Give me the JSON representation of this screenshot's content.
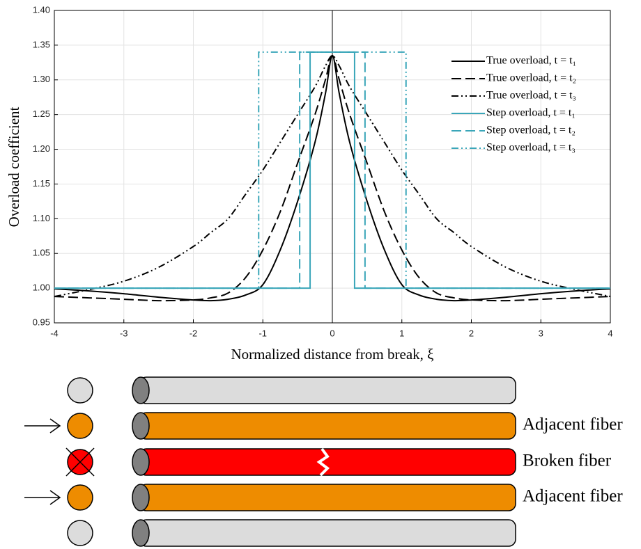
{
  "chart_data": {
    "type": "line",
    "xlabel": "Normalized distance from break,  ξ",
    "ylabel": "Overload coefficient",
    "xlim": [
      -4,
      4
    ],
    "ylim": [
      0.95,
      1.4
    ],
    "xticks": [
      -4,
      -3,
      -2,
      -1,
      0,
      1,
      2,
      3,
      4
    ],
    "yticks": [
      0.95,
      {
        "value": 1,
        "label": "1.00"
      },
      1.05,
      {
        "value": 1.1,
        "label": "1.10"
      },
      1.15,
      {
        "value": 1.2,
        "label": "1.20"
      },
      1.25,
      {
        "value": 1.3,
        "label": "1.30"
      },
      1.35,
      {
        "value": 1.4,
        "label": "1.40"
      }
    ],
    "grid": true,
    "legend": "upper right",
    "series": [
      {
        "name": "True overload, t = t₁",
        "color": "#000000",
        "dash": "solid",
        "x": [
          -4,
          -3.5,
          -3,
          -2.5,
          -2,
          -1.75,
          -1.5,
          -1.25,
          -1,
          -0.75,
          -0.5,
          -0.25,
          -0.1,
          0,
          0.1,
          0.25,
          0.5,
          0.75,
          1,
          1.25,
          1.5,
          1.75,
          2,
          2.5,
          3,
          3.5,
          4
        ],
        "values": [
          0.999,
          0.996,
          0.992,
          0.987,
          0.983,
          0.982,
          0.984,
          0.99,
          1.005,
          1.055,
          1.125,
          1.21,
          1.28,
          1.335,
          1.28,
          1.21,
          1.125,
          1.055,
          1.005,
          0.99,
          0.984,
          0.982,
          0.983,
          0.987,
          0.992,
          0.996,
          0.999
        ]
      },
      {
        "name": "True overload, t = t₂",
        "color": "#000000",
        "dash": "dashed",
        "x": [
          -4,
          -3.5,
          -3,
          -2.5,
          -2,
          -1.75,
          -1.5,
          -1.25,
          -1,
          -0.75,
          -0.5,
          -0.25,
          -0.1,
          0,
          0.1,
          0.25,
          0.5,
          0.75,
          1,
          1.25,
          1.5,
          1.75,
          2,
          2.5,
          3,
          3.5,
          4
        ],
        "values": [
          0.988,
          0.986,
          0.984,
          0.982,
          0.983,
          0.986,
          0.993,
          1.015,
          1.055,
          1.11,
          1.18,
          1.25,
          1.3,
          1.335,
          1.3,
          1.25,
          1.18,
          1.11,
          1.055,
          1.015,
          0.993,
          0.986,
          0.983,
          0.982,
          0.984,
          0.986,
          0.988
        ]
      },
      {
        "name": "True overload, t = t₃",
        "color": "#000000",
        "dash": "dashdotdot",
        "x": [
          -4,
          -3.5,
          -3,
          -2.5,
          -2,
          -1.75,
          -1.5,
          -1.25,
          -1,
          -0.75,
          -0.5,
          -0.25,
          -0.1,
          0,
          0.1,
          0.25,
          0.5,
          0.75,
          1,
          1.25,
          1.5,
          1.75,
          2,
          2.5,
          3,
          3.5,
          4
        ],
        "values": [
          0.988,
          0.998,
          1.01,
          1.03,
          1.06,
          1.08,
          1.1,
          1.135,
          1.17,
          1.21,
          1.25,
          1.29,
          1.32,
          1.335,
          1.32,
          1.29,
          1.25,
          1.21,
          1.17,
          1.135,
          1.1,
          1.08,
          1.06,
          1.03,
          1.01,
          0.998,
          0.988
        ]
      },
      {
        "name": "Step overload, t = t₁",
        "color": "#3aa6b9",
        "dash": "solid",
        "x": [
          -4,
          -0.32,
          -0.32,
          0.32,
          0.32,
          4
        ],
        "values": [
          1,
          1,
          1.34,
          1.34,
          1,
          1
        ]
      },
      {
        "name": "Step overload, t = t₂",
        "color": "#3aa6b9",
        "dash": "dashed",
        "x": [
          -4,
          -0.47,
          -0.47,
          0.47,
          0.47,
          4
        ],
        "values": [
          1,
          1,
          1.34,
          1.34,
          1,
          1
        ]
      },
      {
        "name": "Step overload, t = t₃",
        "color": "#3aa6b9",
        "dash": "dashdotdot",
        "x": [
          -4,
          -1.06,
          -1.06,
          1.06,
          1.06,
          4
        ],
        "values": [
          1,
          1,
          1.34,
          1.34,
          1,
          1
        ]
      }
    ]
  },
  "diagram": {
    "labels": [
      "Adjacent fiber",
      "Broken fiber",
      "Adjacent fiber"
    ]
  }
}
